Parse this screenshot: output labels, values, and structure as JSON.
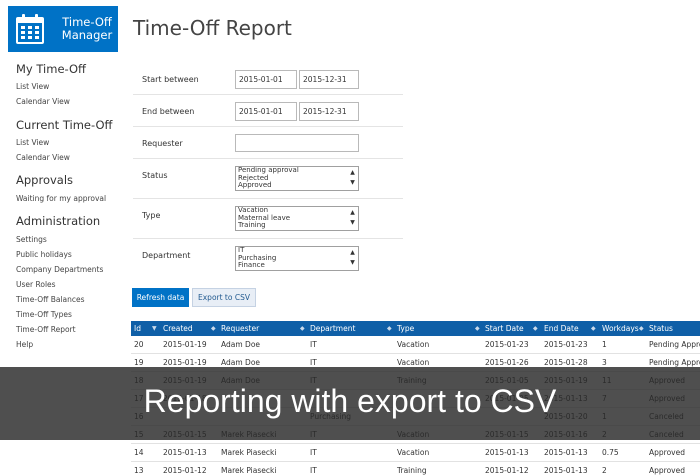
{
  "brand": {
    "line1": "Time-Off",
    "line2": "Manager",
    "color": "#0072c6"
  },
  "sidebar": {
    "sections": [
      {
        "heading": "My Time-Off",
        "items": [
          "List View",
          "Calendar View"
        ]
      },
      {
        "heading": "Current Time-Off",
        "items": [
          "List View",
          "Calendar View"
        ]
      },
      {
        "heading": "Approvals",
        "items": [
          "Waiting for my approval"
        ]
      },
      {
        "heading": "Administration",
        "items": [
          "Settings",
          "Public holidays",
          "Company Departments",
          "User Roles",
          "Time-Off Balances",
          "Time-Off Types",
          "Time-Off Report",
          "Help"
        ]
      }
    ]
  },
  "page": {
    "title": "Time-Off Report"
  },
  "filters": {
    "start_between": {
      "label": "Start between",
      "from": "2015-01-01",
      "to": "2015-12-31"
    },
    "end_between": {
      "label": "End between",
      "from": "2015-01-01",
      "to": "2015-12-31"
    },
    "requester": {
      "label": "Requester",
      "value": ""
    },
    "status": {
      "label": "Status",
      "options": [
        "Pending approval",
        "Rejected",
        "Approved"
      ]
    },
    "type": {
      "label": "Type",
      "options": [
        "Vacation",
        "Maternal leave",
        "Training"
      ]
    },
    "department": {
      "label": "Department",
      "options": [
        "IT",
        "Purchasing",
        "Finance"
      ]
    }
  },
  "buttons": {
    "refresh": "Refresh data",
    "export": "Export to CSV"
  },
  "table": {
    "columns": [
      "Id",
      "Created",
      "Requester",
      "Department",
      "Type",
      "Start Date",
      "End Date",
      "Workdays",
      "Status"
    ],
    "rows": [
      [
        "20",
        "2015-01-19",
        "Adam Doe",
        "IT",
        "Vacation",
        "2015-01-23",
        "2015-01-23",
        "1",
        "Pending Approval"
      ],
      [
        "19",
        "2015-01-19",
        "Adam Doe",
        "IT",
        "Vacation",
        "2015-01-26",
        "2015-01-28",
        "3",
        "Pending Approval"
      ],
      [
        "18",
        "2015-01-19",
        "Adam Doe",
        "IT",
        "Training",
        "2015-01-05",
        "2015-01-19",
        "11",
        "Approved"
      ],
      [
        "17",
        "2015-01-18",
        "",
        "",
        "",
        "2015-01-05",
        "2015-01-13",
        "7",
        "Approved"
      ],
      [
        "16",
        "",
        "",
        "Purchasing",
        "",
        "",
        "2015-01-20",
        "1",
        "Canceled"
      ],
      [
        "15",
        "2015-01-15",
        "Marek Piasecki",
        "IT",
        "Vacation",
        "2015-01-15",
        "2015-01-16",
        "2",
        "Canceled"
      ],
      [
        "14",
        "2015-01-13",
        "Marek Piasecki",
        "IT",
        "Vacation",
        "2015-01-13",
        "2015-01-13",
        "0.75",
        "Approved"
      ],
      [
        "13",
        "2015-01-12",
        "Marek Piasecki",
        "IT",
        "Training",
        "2015-01-12",
        "2015-01-13",
        "2",
        "Approved"
      ]
    ]
  },
  "overlay": {
    "caption": "Reporting with export to CSV"
  }
}
